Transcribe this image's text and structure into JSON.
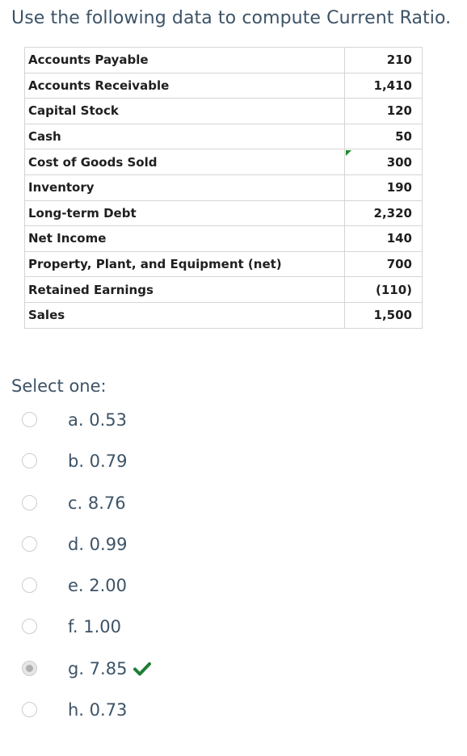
{
  "question": {
    "text": "Use the following data to compute Current Ratio."
  },
  "table": {
    "rows": [
      {
        "label": "Accounts Payable",
        "value": "210"
      },
      {
        "label": "Accounts Receivable",
        "value": "1,410"
      },
      {
        "label": "Capital Stock",
        "value": "120"
      },
      {
        "label": "Cash",
        "value": "50"
      },
      {
        "label": "Cost of Goods Sold",
        "value": "300"
      },
      {
        "label": "Inventory",
        "value": "190"
      },
      {
        "label": "Long-term Debt",
        "value": "2,320"
      },
      {
        "label": "Net Income",
        "value": "140"
      },
      {
        "label": "Property, Plant, and Equipment (net)",
        "value": "700"
      },
      {
        "label": "Retained Earnings",
        "value": "(110)"
      },
      {
        "label": "Sales",
        "value": "1,500"
      }
    ]
  },
  "select_label": "Select one:",
  "options": [
    {
      "text": "a. 0.53",
      "selected": false,
      "correct_mark": false
    },
    {
      "text": "b. 0.79",
      "selected": false,
      "correct_mark": false
    },
    {
      "text": "c. 8.76",
      "selected": false,
      "correct_mark": false
    },
    {
      "text": "d. 0.99",
      "selected": false,
      "correct_mark": false
    },
    {
      "text": "e. 2.00",
      "selected": false,
      "correct_mark": false
    },
    {
      "text": "f. 1.00",
      "selected": false,
      "correct_mark": false
    },
    {
      "text": "g. 7.85",
      "selected": true,
      "correct_mark": true
    },
    {
      "text": "h. 0.73",
      "selected": false,
      "correct_mark": false
    }
  ],
  "icons": {
    "correct": "check-icon"
  },
  "colors": {
    "check": "#1e7e34",
    "flag": "#1e8c2e",
    "text": "#3d5367"
  }
}
